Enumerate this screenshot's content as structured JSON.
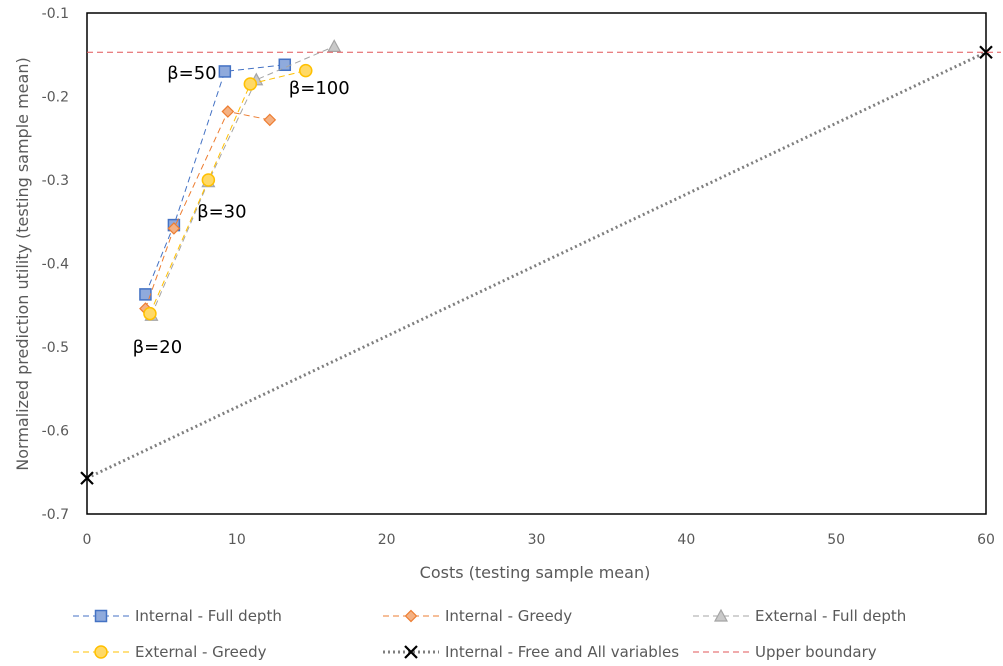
{
  "chart_data": {
    "type": "scatter",
    "title": "",
    "xlabel": "Costs (testing sample mean)",
    "ylabel": "Normalized prediction utility (testing sample mean)",
    "xlim": [
      0,
      60
    ],
    "ylim": [
      -0.7,
      -0.1
    ],
    "x_ticks": [
      "0",
      "10",
      "20",
      "30",
      "40",
      "50",
      "60"
    ],
    "y_ticks": [
      "-0.1",
      "-0.2",
      "-0.3",
      "-0.4",
      "-0.5",
      "-0.6",
      "-0.7"
    ],
    "grid": false,
    "legend_position": "bottom",
    "series": [
      {
        "name": "Internal - Full depth",
        "color": "#4472C4",
        "fill": "#8FAADC",
        "marker": "square",
        "line": "dashed",
        "points": [
          [
            3.9,
            -0.437
          ],
          [
            5.8,
            -0.354
          ],
          [
            9.2,
            -0.17
          ],
          [
            13.2,
            -0.162
          ]
        ]
      },
      {
        "name": "Internal - Greedy",
        "color": "#ED7D31",
        "fill": "#F4B183",
        "marker": "diamond",
        "line": "dashed",
        "points": [
          [
            3.9,
            -0.454
          ],
          [
            5.8,
            -0.358
          ],
          [
            9.4,
            -0.218
          ],
          [
            12.2,
            -0.228
          ]
        ]
      },
      {
        "name": "External - Full depth",
        "color": "#A5A5A5",
        "fill": "#C9C9C9",
        "marker": "triangle",
        "line": "dashed",
        "points": [
          [
            4.3,
            -0.462
          ],
          [
            8.1,
            -0.302
          ],
          [
            11.3,
            -0.18
          ],
          [
            16.5,
            -0.14
          ]
        ]
      },
      {
        "name": "External - Greedy",
        "color": "#FFC000",
        "fill": "#FFD966",
        "marker": "circle",
        "line": "dashed",
        "points": [
          [
            4.2,
            -0.46
          ],
          [
            8.1,
            -0.3
          ],
          [
            10.9,
            -0.185
          ],
          [
            14.6,
            -0.169
          ]
        ]
      },
      {
        "name": "Internal - Free and All variables",
        "color": "#000000",
        "line_color": "#7F7F7F",
        "marker": "x",
        "line": "dotted",
        "points": [
          [
            0,
            -0.657
          ],
          [
            60,
            -0.147
          ]
        ]
      },
      {
        "name": "Upper boundary",
        "color": "#E15759",
        "marker": "none",
        "line": "dashed",
        "points": [
          [
            0,
            -0.147
          ],
          [
            61,
            -0.147
          ]
        ]
      }
    ],
    "annotations": [
      {
        "text": "β=50",
        "x": 7.0,
        "y": -0.172
      },
      {
        "text": "β=100",
        "x": 15.5,
        "y": -0.19
      },
      {
        "text": "β=30",
        "x": 9.0,
        "y": -0.338
      },
      {
        "text": "β=20",
        "x": 4.7,
        "y": -0.5
      }
    ]
  }
}
